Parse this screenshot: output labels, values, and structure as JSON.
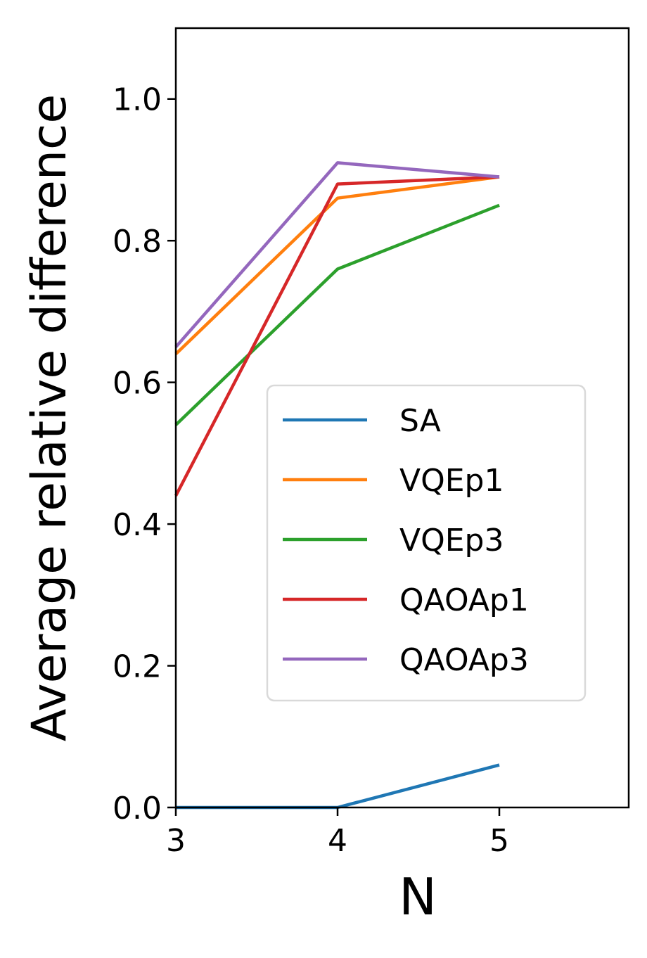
{
  "chart_data": {
    "type": "line",
    "xlabel": "N",
    "ylabel": "Average relative difference",
    "xlim": [
      3,
      5.8
    ],
    "ylim": [
      0,
      1.1
    ],
    "xticks": [
      "3",
      "4",
      "5"
    ],
    "yticks": [
      "0.0",
      "0.2",
      "0.4",
      "0.6",
      "0.8",
      "1.0"
    ],
    "x": [
      3,
      4,
      5
    ],
    "series": [
      {
        "name": "SA",
        "color": "#1f77b4",
        "values": [
          0.0,
          0.0,
          0.06
        ]
      },
      {
        "name": "VQEp1",
        "color": "#ff7f0e",
        "values": [
          0.64,
          0.86,
          0.89
        ]
      },
      {
        "name": "VQEp3",
        "color": "#2ca02c",
        "values": [
          0.54,
          0.76,
          0.85
        ]
      },
      {
        "name": "QAOAp1",
        "color": "#d62728",
        "values": [
          0.44,
          0.88,
          0.89
        ]
      },
      {
        "name": "QAOAp3",
        "color": "#9467bd",
        "values": [
          0.65,
          0.91,
          0.89
        ]
      }
    ],
    "legend_position": "center-right",
    "grid": false
  }
}
